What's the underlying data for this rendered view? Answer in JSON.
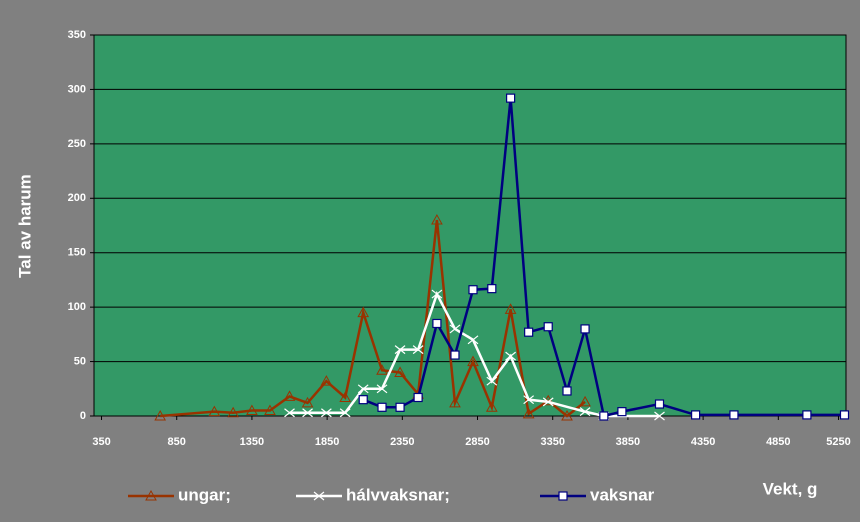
{
  "chart_data": {
    "type": "line",
    "y_label": "Tal av harum",
    "x_label": "Vekt, g",
    "xlim": [
      300,
      5300
    ],
    "ylim": [
      0,
      350
    ],
    "xticks": [
      350,
      850,
      1350,
      1850,
      2350,
      2850,
      3350,
      3850,
      4350,
      4850,
      5250
    ],
    "yticks": [
      0,
      50,
      100,
      150,
      200,
      250,
      300,
      350
    ],
    "grid": true,
    "legend": "bottom",
    "series": [
      {
        "name": "ungar;",
        "color": "#993300",
        "marker": "triangle",
        "x": [
          740,
          1100,
          1225,
          1350,
          1470,
          1600,
          1720,
          1845,
          1970,
          2090,
          2215,
          2335,
          2455,
          2580,
          2700,
          2820,
          2945,
          3070,
          3190,
          3320,
          3445,
          3565
        ],
        "values": [
          0,
          4,
          3,
          5,
          5,
          18,
          12,
          32,
          17,
          95,
          42,
          40,
          20,
          180,
          12,
          50,
          8,
          98,
          2,
          14,
          0,
          13
        ]
      },
      {
        "name": "hálvvaksnar;",
        "color": "#ffffff",
        "marker": "x",
        "x": [
          1600,
          1720,
          1845,
          1970,
          2090,
          2215,
          2335,
          2455,
          2580,
          2700,
          2820,
          2945,
          3070,
          3190,
          3320,
          3565,
          3690,
          4060
        ],
        "values": [
          3,
          3,
          3,
          3,
          25,
          25,
          61,
          61,
          112,
          80,
          70,
          32,
          55,
          15,
          13,
          4,
          0,
          0
        ]
      },
      {
        "name": "vaksnar",
        "color": "#000080",
        "marker": "square",
        "x": [
          2090,
          2215,
          2335,
          2455,
          2580,
          2700,
          2820,
          2945,
          3070,
          3190,
          3320,
          3445,
          3565,
          3690,
          3810,
          4060,
          4300,
          4555,
          5040,
          5290
        ],
        "values": [
          15,
          8,
          8,
          17,
          85,
          56,
          116,
          117,
          292,
          77,
          82,
          23,
          80,
          0,
          4,
          11,
          1,
          1,
          1,
          1
        ]
      }
    ]
  }
}
